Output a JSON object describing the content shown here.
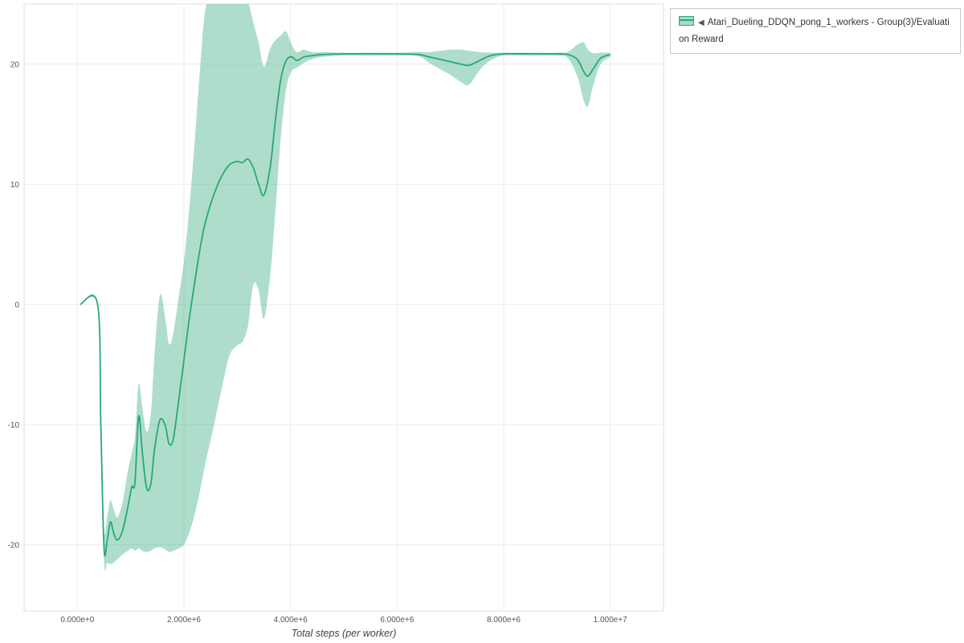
{
  "legend": {
    "collapse_icon": "◀",
    "series_label": "Atari_Dueling_DDQN_pong_1_workers - Group(3)/Evaluation Reward"
  },
  "colors": {
    "accent": "#29a877",
    "band": "rgba(41,168,119,0.38)",
    "band_solid": "#a6d9c6"
  },
  "chart_data": {
    "type": "line",
    "title": "",
    "xlabel": "Total steps (per worker)",
    "ylabel": "",
    "x_units": "millions of steps",
    "xlim": [
      -1,
      11
    ],
    "ylim": [
      -25.5,
      25
    ],
    "grid": true,
    "legend_position": "top-right",
    "x_tick_values": [
      0,
      2,
      4,
      6,
      8,
      10
    ],
    "x_tick_labels": [
      "0.000e+0",
      "2.000e+6",
      "4.000e+6",
      "6.000e+6",
      "8.000e+6",
      "1.000e+7"
    ],
    "y_tick_values": [
      -20,
      -10,
      0,
      10,
      20
    ],
    "y_tick_labels": [
      "-20",
      "-10",
      "0",
      "10",
      "20"
    ],
    "series": [
      {
        "name": "Atari_Dueling_DDQN_pong_1_workers - Group(3)/Evaluation Reward",
        "color": "#29a877",
        "band_color": "rgba(41,168,119,0.38)",
        "x": [
          0.05,
          0.38,
          0.44,
          0.5,
          0.56,
          0.62,
          0.68,
          0.75,
          0.85,
          0.95,
          1.02,
          1.08,
          1.15,
          1.22,
          1.3,
          1.38,
          1.45,
          1.55,
          1.65,
          1.72,
          1.8,
          1.9,
          2.0,
          2.1,
          2.2,
          2.3,
          2.4,
          2.55,
          2.7,
          2.85,
          3.0,
          3.1,
          3.2,
          3.3,
          3.4,
          3.5,
          3.62,
          3.72,
          3.82,
          3.92,
          4.02,
          4.12,
          4.25,
          4.4,
          4.6,
          5.0,
          5.5,
          6.0,
          6.4,
          6.6,
          6.8,
          7.0,
          7.2,
          7.35,
          7.55,
          7.75,
          8.0,
          8.5,
          9.0,
          9.2,
          9.38,
          9.5,
          9.58,
          9.68,
          9.82,
          10.0
        ],
        "mean": [
          0,
          0,
          -10,
          -20.3,
          -19.6,
          -18.1,
          -19.0,
          -19.6,
          -18.8,
          -16.8,
          -15.2,
          -14.8,
          -9.3,
          -12.4,
          -15.3,
          -14.9,
          -12.0,
          -9.6,
          -10.1,
          -11.6,
          -11.2,
          -8.0,
          -4.6,
          -1.2,
          1.8,
          4.6,
          6.8,
          9.0,
          10.6,
          11.6,
          11.9,
          11.8,
          12.1,
          11.4,
          10.0,
          9.1,
          11.5,
          15.5,
          18.8,
          20.3,
          20.6,
          20.3,
          20.6,
          20.7,
          20.8,
          20.85,
          20.85,
          20.85,
          20.8,
          20.6,
          20.4,
          20.2,
          20.0,
          19.9,
          20.3,
          20.7,
          20.85,
          20.85,
          20.85,
          20.8,
          20.4,
          19.4,
          19.0,
          19.6,
          20.5,
          20.8
        ],
        "lower": [
          0,
          0,
          -11.5,
          -21.4,
          -21.5,
          -21.6,
          -21.5,
          -21.2,
          -20.8,
          -20.5,
          -20.3,
          -20.5,
          -20.3,
          -20.5,
          -20.6,
          -20.5,
          -20.3,
          -20.2,
          -20.4,
          -20.6,
          -20.5,
          -20.3,
          -20.0,
          -19.0,
          -17.5,
          -15.5,
          -13.3,
          -10.3,
          -7.2,
          -4.3,
          -3.4,
          -3.1,
          -1.8,
          1.6,
          1.2,
          -1.2,
          2.5,
          8.0,
          14.0,
          18.0,
          19.4,
          19.7,
          20.1,
          20.4,
          20.6,
          20.7,
          20.7,
          20.7,
          20.65,
          20.1,
          19.6,
          19.1,
          18.5,
          18.3,
          19.5,
          20.3,
          20.7,
          20.7,
          20.7,
          20.5,
          19.0,
          17.0,
          16.5,
          18.2,
          20.0,
          20.6
        ],
        "upper": [
          0,
          0,
          -8.5,
          -18.6,
          -17.6,
          -16.3,
          -17.0,
          -17.7,
          -16.4,
          -13.8,
          -12.4,
          -11.0,
          -6.6,
          -8.6,
          -10.6,
          -9.0,
          -4.0,
          0.8,
          -1.2,
          -3.3,
          -2.4,
          0.6,
          3.6,
          8.0,
          13.5,
          19.5,
          24.5,
          25.6,
          25.8,
          25.8,
          25.8,
          25.6,
          25.2,
          23.5,
          21.8,
          19.8,
          21.3,
          22.0,
          22.4,
          22.7,
          21.6,
          21.0,
          21.2,
          21.0,
          21.0,
          20.95,
          20.95,
          20.95,
          21.0,
          21.0,
          21.1,
          21.2,
          21.2,
          21.1,
          21.0,
          20.95,
          20.95,
          20.95,
          20.95,
          21.0,
          21.6,
          21.8,
          21.2,
          20.9,
          20.95,
          20.95
        ]
      }
    ]
  }
}
